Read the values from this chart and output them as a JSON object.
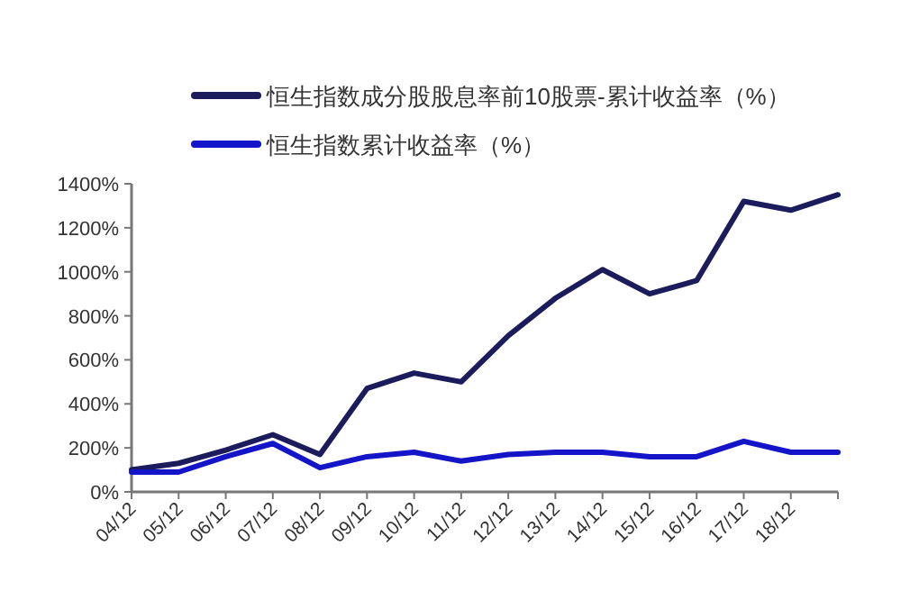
{
  "chart_data": {
    "type": "line",
    "categories": [
      "04/12",
      "05/12",
      "06/12",
      "07/12",
      "08/12",
      "09/12",
      "10/12",
      "11/12",
      "12/12",
      "13/12",
      "14/12",
      "15/12",
      "16/12",
      "17/12",
      "18/12",
      null
    ],
    "series": [
      {
        "name": "恒生指数成分股股息率前10股票-累计收益率（%）",
        "color": "#1c1c5c",
        "values": [
          100,
          130,
          190,
          260,
          170,
          470,
          540,
          500,
          710,
          880,
          1010,
          900,
          960,
          1320,
          1280,
          1350
        ]
      },
      {
        "name": "恒生指数累计收益率（%）",
        "color": "#1414c8",
        "values": [
          90,
          90,
          160,
          220,
          110,
          160,
          180,
          140,
          170,
          180,
          180,
          160,
          160,
          230,
          180,
          180
        ]
      }
    ],
    "ylim": [
      0,
      1400
    ],
    "yticks": [
      {
        "value": 0,
        "label": "0%"
      },
      {
        "value": 200,
        "label": "200%"
      },
      {
        "value": 400,
        "label": "400%"
      },
      {
        "value": 600,
        "label": "600%"
      },
      {
        "value": 800,
        "label": "800%"
      },
      {
        "value": 1000,
        "label": "1000%"
      },
      {
        "value": 1200,
        "label": "1200%"
      },
      {
        "value": 1400,
        "label": "1400%"
      }
    ],
    "legend": "top",
    "grid": false,
    "marker": "none",
    "line_style": "solid"
  }
}
